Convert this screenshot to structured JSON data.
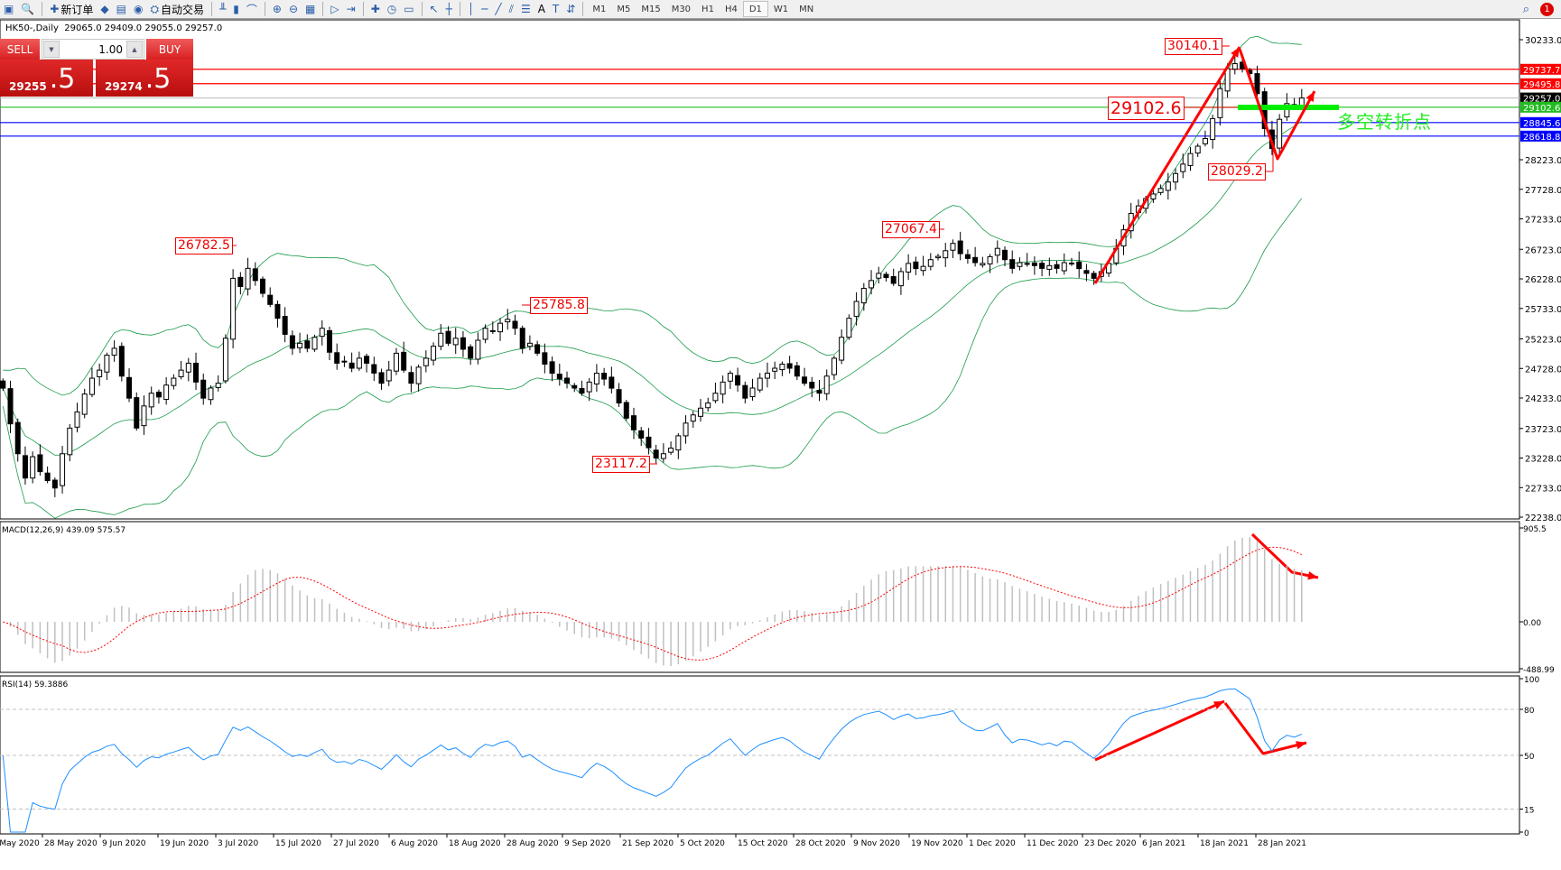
{
  "toolbar": {
    "items": [
      {
        "icon": "chart-window-icon",
        "label": ""
      },
      {
        "icon": "zoom-navigator-icon",
        "label": ""
      },
      {
        "icon": "new-order-icon",
        "label": "新订单"
      },
      {
        "icon": "metaeditor-icon",
        "label": ""
      },
      {
        "icon": "terminal-icon",
        "label": ""
      },
      {
        "icon": "signals-icon",
        "label": ""
      },
      {
        "icon": "autotrading-icon",
        "label": "自动交易"
      },
      {
        "icon": "bar-chart-icon",
        "label": ""
      },
      {
        "icon": "candlestick-icon",
        "label": ""
      },
      {
        "icon": "line-chart-icon",
        "label": ""
      },
      {
        "icon": "zoom-in-icon",
        "label": ""
      },
      {
        "icon": "zoom-out-icon",
        "label": ""
      },
      {
        "icon": "tile-windows-icon",
        "label": ""
      },
      {
        "icon": "auto-scroll-icon",
        "label": ""
      },
      {
        "icon": "chart-shift-icon",
        "label": ""
      },
      {
        "icon": "indicators-icon",
        "label": ""
      },
      {
        "icon": "periods-icon",
        "label": ""
      },
      {
        "icon": "templates-icon",
        "label": ""
      },
      {
        "icon": "cursor-icon",
        "label": ""
      },
      {
        "icon": "crosshair-icon",
        "label": ""
      },
      {
        "icon": "vertical-line-icon",
        "label": ""
      },
      {
        "icon": "horizontal-line-icon",
        "label": ""
      },
      {
        "icon": "trendline-icon",
        "label": ""
      },
      {
        "icon": "equidistant-channel-icon",
        "label": ""
      },
      {
        "icon": "fibonacci-icon",
        "label": ""
      },
      {
        "icon": "text-icon",
        "label": "A"
      },
      {
        "icon": "text-label-icon",
        "label": ""
      },
      {
        "icon": "arrows-icon",
        "label": ""
      }
    ],
    "timeframes": [
      "M1",
      "M5",
      "M15",
      "M30",
      "H1",
      "H4",
      "D1",
      "W1",
      "MN"
    ],
    "active_timeframe": "D1",
    "notification_count": "1"
  },
  "header": {
    "symbol": "HK50-,Daily",
    "ohlc": "29065.0 29409.0 29055.0 29257.0"
  },
  "trade_panel": {
    "sell_label": "SELL",
    "buy_label": "BUY",
    "lot": "1.00",
    "sell_big": "29255",
    "sell_small": ".5",
    "buy_big": "29274",
    "buy_small": ".5"
  },
  "annotations": {
    "high1": "26782.5",
    "high2": "25785.8",
    "low1": "23117.2",
    "high3": "27067.4",
    "top": "30140.1",
    "pivot": "29102.6",
    "dip": "28029.2",
    "pivot_text": "多空转折点"
  },
  "colors": {
    "bull_body": "#ffffff",
    "bear_body": "#000000",
    "bands": "#1a9a4a",
    "rsi": "#1e90ff",
    "signal": "#ff0000",
    "histogram": "#c0c0c0",
    "arrow": "#ff0000",
    "pivot": "#00ee00"
  },
  "chart_data": {
    "type": "candlestick",
    "symbol": "HK50-",
    "timeframe": "Daily",
    "price_ticks": [
      "30233.0",
      "28223.0",
      "27728.0",
      "27233.0",
      "26723.0",
      "26228.0",
      "25733.0",
      "25223.0",
      "24728.0",
      "24233.0",
      "23723.0",
      "23228.0",
      "22733.0",
      "22238.0"
    ],
    "ylim": [
      22238.0,
      30233.0
    ],
    "x_tick_labels": [
      "18 May 2020",
      "28 May 2020",
      "9 Jun 2020",
      "19 Jun 2020",
      "3 Jul 2020",
      "15 Jul 2020",
      "27 Jul 2020",
      "6 Aug 2020",
      "18 Aug 2020",
      "28 Aug 2020",
      "9 Sep 2020",
      "21 Sep 2020",
      "5 Oct 2020",
      "15 Oct 2020",
      "28 Oct 2020",
      "9 Nov 2020",
      "19 Nov 2020",
      "1 Dec 2020",
      "11 Dec 2020",
      "23 Dec 2020",
      "6 Jan 2021",
      "18 Jan 2021",
      "28 Jan 2021"
    ],
    "closes": [
      24398,
      23800,
      23300,
      22893,
      23250,
      23000,
      22850,
      22726,
      23300,
      23729,
      24000,
      24300,
      24565,
      24700,
      24950,
      25066,
      24600,
      24231,
      23730,
      24100,
      24314,
      24250,
      24450,
      24565,
      24700,
      24816,
      24500,
      24231,
      24400,
      24481,
      25234,
      26237,
      26100,
      26404,
      26200,
      25986,
      25800,
      25568,
      25300,
      25066,
      25150,
      25066,
      25250,
      25401,
      25000,
      24816,
      24850,
      24732,
      24900,
      24816,
      24650,
      24481,
      24700,
      24983,
      24700,
      24481,
      24750,
      24899,
      25100,
      25317,
      25150,
      25234,
      25050,
      24899,
      25200,
      25401,
      25350,
      25485,
      25550,
      25401,
      25066,
      25150,
      24983,
      24800,
      24648,
      24550,
      24481,
      24400,
      24314,
      24500,
      24648,
      24550,
      24398,
      24150,
      23896,
      23700,
      23562,
      23400,
      23228,
      23300,
      23395,
      23600,
      23813,
      23950,
      24063,
      24150,
      24314,
      24500,
      24648,
      24450,
      24231,
      24400,
      24565,
      24650,
      24732,
      24800,
      24732,
      24600,
      24481,
      24400,
      24314,
      24600,
      24899,
      25250,
      25568,
      25850,
      26070,
      26200,
      26320,
      26250,
      26153,
      26350,
      26487,
      26400,
      26437,
      26550,
      26605,
      26700,
      26822,
      26650,
      26570,
      26500,
      26487,
      26600,
      26739,
      26550,
      26404,
      26500,
      26487,
      26450,
      26404,
      26450,
      26404,
      26500,
      26487,
      26400,
      26320,
      26237,
      26350,
      26487,
      26739,
      27050,
      27324,
      27450,
      27574,
      27650,
      27742,
      27850,
      27992,
      28150,
      28327,
      28450,
      28578,
      28912,
      29414,
      29748,
      29832,
      29750,
      29665,
      29330,
      28745,
      28410,
      28900,
      29163,
      29100,
      29257
    ],
    "last_bar": {
      "open": 29065.0,
      "high": 29409.0,
      "low": 29055.0,
      "close": 29257.0
    },
    "bollinger": {
      "period": 20,
      "deviation": 2
    },
    "horizontal_levels": [
      {
        "value": "29737.7",
        "color": "#ff0000"
      },
      {
        "value": "29495.8",
        "color": "#ff0000"
      },
      {
        "value": "29257.0",
        "color": "#000000"
      },
      {
        "value": "29102.6",
        "color": "#22bb22"
      },
      {
        "value": "28845.6",
        "color": "#0000ff"
      },
      {
        "value": "28618.8",
        "color": "#0000ff"
      }
    ],
    "macd": {
      "label": "MACD(12,26,9) 439.09 575.57",
      "ticks": [
        "905.5",
        "0.00",
        "-488.99"
      ],
      "ylim": [
        -488.99,
        905.5
      ]
    },
    "rsi": {
      "label": "RSI(14) 59.3886",
      "ticks": [
        "100",
        "80",
        "50",
        "15",
        "0"
      ],
      "levels": [
        80,
        50,
        15
      ],
      "ylim": [
        0,
        100
      ]
    }
  }
}
